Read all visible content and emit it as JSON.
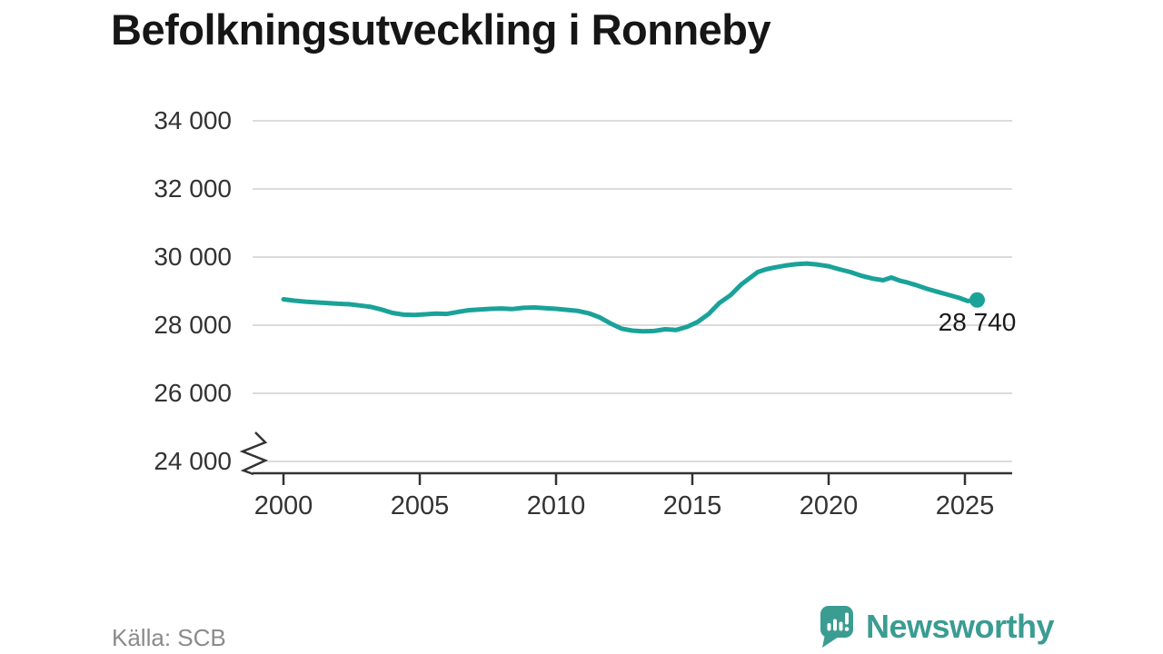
{
  "title": "Befolkningsutveckling i Ronneby",
  "source": "Källa: SCB",
  "branding": {
    "name": "Newsworthy",
    "logo_icon": "newsworthy-speech-bubble-bar-chart-icon",
    "color": "#3b9c92"
  },
  "colors": {
    "line": "#1aa299",
    "grid": "#dcdcdc",
    "axis": "#333333",
    "tick_text": "#333333",
    "title_text": "#161616",
    "muted_text": "#8b8b8b"
  },
  "chart_data": {
    "type": "line",
    "title": "Befolkningsutveckling i Ronneby",
    "xlabel": "",
    "ylabel": "",
    "grid": "horizontal",
    "axis_break": true,
    "ylim": [
      24000,
      34000
    ],
    "line_color": "#1aa299",
    "x": [
      2000,
      2000.4,
      2000.8,
      2001.2,
      2001.6,
      2002,
      2002.4,
      2002.8,
      2003.2,
      2003.6,
      2004,
      2004.4,
      2004.8,
      2005.2,
      2005.6,
      2006,
      2006.4,
      2006.8,
      2007.2,
      2007.6,
      2008,
      2008.4,
      2008.8,
      2009.2,
      2009.6,
      2010,
      2010.4,
      2010.8,
      2011.2,
      2011.6,
      2012,
      2012.4,
      2012.8,
      2013.2,
      2013.6,
      2014,
      2014.4,
      2014.8,
      2015.2,
      2015.6,
      2016,
      2016.4,
      2016.8,
      2017.1,
      2017.4,
      2017.7,
      2018,
      2018.4,
      2018.8,
      2019.2,
      2019.6,
      2020,
      2020.4,
      2020.8,
      2021.2,
      2021.6,
      2022,
      2022.3,
      2022.6,
      2022.9,
      2023.2,
      2023.6,
      2024,
      2024.4,
      2024.8,
      2025.1,
      2025.45
    ],
    "values": [
      28760,
      28720,
      28690,
      28670,
      28650,
      28630,
      28615,
      28580,
      28540,
      28460,
      28360,
      28310,
      28300,
      28320,
      28340,
      28330,
      28390,
      28440,
      28460,
      28480,
      28490,
      28475,
      28510,
      28520,
      28500,
      28480,
      28450,
      28420,
      28350,
      28230,
      28050,
      27900,
      27840,
      27820,
      27830,
      27880,
      27860,
      27950,
      28100,
      28330,
      28660,
      28880,
      29200,
      29380,
      29560,
      29640,
      29690,
      29750,
      29790,
      29810,
      29780,
      29730,
      29640,
      29560,
      29450,
      29370,
      29320,
      29400,
      29310,
      29250,
      29180,
      29070,
      28980,
      28890,
      28800,
      28710,
      28740
    ],
    "x_ticks": {
      "values": [
        2000,
        2005,
        2010,
        2015,
        2020,
        2025
      ],
      "labels": [
        "2000",
        "2005",
        "2010",
        "2015",
        "2020",
        "2025"
      ]
    },
    "y_ticks": {
      "values": [
        24000,
        26000,
        28000,
        30000,
        32000,
        34000
      ],
      "labels": [
        "24 000",
        "26 000",
        "28 000",
        "30 000",
        "32 000",
        "34 000"
      ]
    },
    "last_point": {
      "x": 2025.45,
      "value": 28740,
      "label": "28 740"
    }
  }
}
